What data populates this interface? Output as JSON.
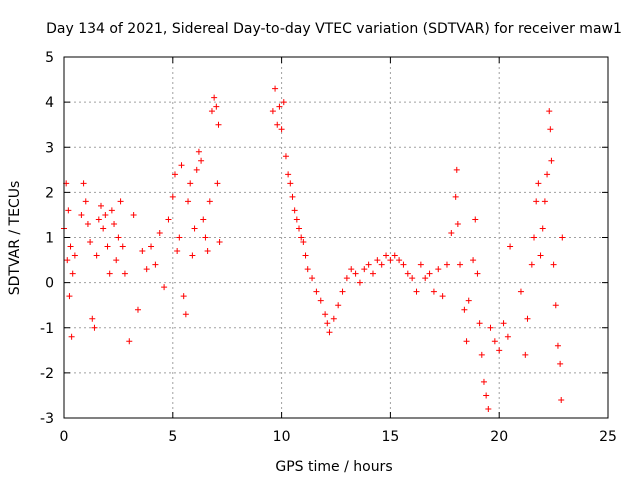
{
  "chart_data": {
    "type": "scatter",
    "title": "Day 134 of 2021, Sidereal Day-to-day VTEC variation (SDTVAR) for receiver maw1",
    "xlabel": "GPS time / hours",
    "ylabel": "SDTVAR / TECUs",
    "xlim": [
      0,
      25
    ],
    "ylim": [
      -3,
      5
    ],
    "xticks": [
      0,
      5,
      10,
      15,
      20,
      25
    ],
    "yticks": [
      -3,
      -2,
      -1,
      0,
      1,
      2,
      3,
      4,
      5
    ],
    "xtick_labels": [
      "0",
      "5",
      "10",
      "15",
      "20",
      "25"
    ],
    "ytick_labels": [
      "-3",
      "-2",
      "-1",
      "0",
      "1",
      "2",
      "3",
      "4",
      "5"
    ],
    "grid": true,
    "marker": "+",
    "color": "#ff0000",
    "series": [
      {
        "name": "SDTVAR",
        "points": [
          [
            0.0,
            1.2
          ],
          [
            0.1,
            2.2
          ],
          [
            0.15,
            0.5
          ],
          [
            0.2,
            1.6
          ],
          [
            0.25,
            -0.3
          ],
          [
            0.3,
            0.8
          ],
          [
            0.35,
            -1.2
          ],
          [
            0.4,
            0.2
          ],
          [
            0.5,
            0.6
          ],
          [
            0.8,
            1.5
          ],
          [
            0.9,
            2.2
          ],
          [
            1.0,
            1.8
          ],
          [
            1.1,
            1.3
          ],
          [
            1.2,
            0.9
          ],
          [
            1.3,
            -0.8
          ],
          [
            1.4,
            -1.0
          ],
          [
            1.5,
            0.6
          ],
          [
            1.6,
            1.4
          ],
          [
            1.7,
            1.7
          ],
          [
            1.8,
            1.2
          ],
          [
            1.9,
            1.5
          ],
          [
            2.0,
            0.8
          ],
          [
            2.1,
            0.2
          ],
          [
            2.2,
            1.6
          ],
          [
            2.3,
            1.3
          ],
          [
            2.4,
            0.5
          ],
          [
            2.5,
            1.0
          ],
          [
            2.6,
            1.8
          ],
          [
            2.7,
            0.8
          ],
          [
            2.8,
            0.2
          ],
          [
            3.0,
            -1.3
          ],
          [
            3.2,
            1.5
          ],
          [
            3.4,
            -0.6
          ],
          [
            3.6,
            0.7
          ],
          [
            3.8,
            0.3
          ],
          [
            4.0,
            0.8
          ],
          [
            4.2,
            0.4
          ],
          [
            4.4,
            1.1
          ],
          [
            4.6,
            -0.1
          ],
          [
            4.8,
            1.4
          ],
          [
            5.0,
            1.9
          ],
          [
            5.1,
            2.4
          ],
          [
            5.2,
            0.7
          ],
          [
            5.3,
            1.0
          ],
          [
            5.4,
            2.6
          ],
          [
            5.5,
            -0.3
          ],
          [
            5.6,
            -0.7
          ],
          [
            5.7,
            1.8
          ],
          [
            5.8,
            2.2
          ],
          [
            5.9,
            0.6
          ],
          [
            6.0,
            1.2
          ],
          [
            6.1,
            2.5
          ],
          [
            6.2,
            2.9
          ],
          [
            6.3,
            2.7
          ],
          [
            6.4,
            1.4
          ],
          [
            6.5,
            1.0
          ],
          [
            6.6,
            0.7
          ],
          [
            6.7,
            1.8
          ],
          [
            6.8,
            3.8
          ],
          [
            6.9,
            4.1
          ],
          [
            7.0,
            3.9
          ],
          [
            7.05,
            2.2
          ],
          [
            7.1,
            3.5
          ],
          [
            7.15,
            0.9
          ],
          [
            9.6,
            3.8
          ],
          [
            9.7,
            4.3
          ],
          [
            9.8,
            3.5
          ],
          [
            9.9,
            3.9
          ],
          [
            10.0,
            3.4
          ],
          [
            10.1,
            4.0
          ],
          [
            10.2,
            2.8
          ],
          [
            10.3,
            2.4
          ],
          [
            10.4,
            2.2
          ],
          [
            10.5,
            1.9
          ],
          [
            10.6,
            1.6
          ],
          [
            10.7,
            1.4
          ],
          [
            10.8,
            1.2
          ],
          [
            10.9,
            1.0
          ],
          [
            11.0,
            0.9
          ],
          [
            11.1,
            0.6
          ],
          [
            11.2,
            0.3
          ],
          [
            11.4,
            0.1
          ],
          [
            11.6,
            -0.2
          ],
          [
            11.8,
            -0.4
          ],
          [
            12.0,
            -0.7
          ],
          [
            12.1,
            -0.9
          ],
          [
            12.2,
            -1.1
          ],
          [
            12.4,
            -0.8
          ],
          [
            12.6,
            -0.5
          ],
          [
            12.8,
            -0.2
          ],
          [
            13.0,
            0.1
          ],
          [
            13.2,
            0.3
          ],
          [
            13.4,
            0.2
          ],
          [
            13.6,
            0.0
          ],
          [
            13.8,
            0.3
          ],
          [
            14.0,
            0.4
          ],
          [
            14.2,
            0.2
          ],
          [
            14.4,
            0.5
          ],
          [
            14.6,
            0.4
          ],
          [
            14.8,
            0.6
          ],
          [
            15.0,
            0.5
          ],
          [
            15.2,
            0.6
          ],
          [
            15.4,
            0.5
          ],
          [
            15.6,
            0.4
          ],
          [
            15.8,
            0.2
          ],
          [
            16.0,
            0.1
          ],
          [
            16.2,
            -0.2
          ],
          [
            16.4,
            0.4
          ],
          [
            16.6,
            0.1
          ],
          [
            16.8,
            0.2
          ],
          [
            17.0,
            -0.2
          ],
          [
            17.2,
            0.3
          ],
          [
            17.4,
            -0.3
          ],
          [
            17.6,
            0.4
          ],
          [
            17.8,
            1.1
          ],
          [
            18.0,
            1.9
          ],
          [
            18.05,
            2.5
          ],
          [
            18.1,
            1.3
          ],
          [
            18.2,
            0.4
          ],
          [
            18.4,
            -0.6
          ],
          [
            18.5,
            -1.3
          ],
          [
            18.6,
            -0.4
          ],
          [
            18.8,
            0.5
          ],
          [
            18.9,
            1.4
          ],
          [
            19.0,
            0.2
          ],
          [
            19.1,
            -0.9
          ],
          [
            19.2,
            -1.6
          ],
          [
            19.3,
            -2.2
          ],
          [
            19.4,
            -2.5
          ],
          [
            19.5,
            -2.8
          ],
          [
            19.6,
            -1.0
          ],
          [
            19.8,
            -1.3
          ],
          [
            20.0,
            -1.5
          ],
          [
            20.2,
            -0.9
          ],
          [
            20.4,
            -1.2
          ],
          [
            20.5,
            0.8
          ],
          [
            21.0,
            -0.2
          ],
          [
            21.2,
            -1.6
          ],
          [
            21.3,
            -0.8
          ],
          [
            21.5,
            0.4
          ],
          [
            21.6,
            1.0
          ],
          [
            21.7,
            1.8
          ],
          [
            21.8,
            2.2
          ],
          [
            21.9,
            0.6
          ],
          [
            22.0,
            1.2
          ],
          [
            22.1,
            1.8
          ],
          [
            22.2,
            2.4
          ],
          [
            22.3,
            3.8
          ],
          [
            22.35,
            3.4
          ],
          [
            22.4,
            2.7
          ],
          [
            22.5,
            0.4
          ],
          [
            22.6,
            -0.5
          ],
          [
            22.7,
            -1.4
          ],
          [
            22.8,
            -1.8
          ],
          [
            22.85,
            -2.6
          ],
          [
            22.9,
            1.0
          ]
        ]
      }
    ]
  }
}
